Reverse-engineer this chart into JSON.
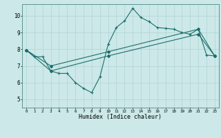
{
  "xlabel": "Humidex (Indice chaleur)",
  "xlim": [
    -0.5,
    23.5
  ],
  "ylim": [
    4.5,
    10.7
  ],
  "yticks": [
    5,
    6,
    7,
    8,
    9,
    10
  ],
  "xticks": [
    0,
    1,
    2,
    3,
    4,
    5,
    6,
    7,
    8,
    9,
    10,
    11,
    12,
    13,
    14,
    15,
    16,
    17,
    18,
    19,
    20,
    21,
    22,
    23
  ],
  "bg_color": "#cce8e8",
  "line_color": "#1a6e6a",
  "grid_color": "#b0d4d4",
  "line1_x": [
    0,
    1,
    2,
    3,
    4,
    5,
    6,
    7,
    8,
    9,
    10,
    11,
    12,
    13,
    14,
    15,
    16,
    17,
    18,
    19,
    20,
    21,
    22,
    23
  ],
  "line1_y": [
    7.95,
    7.55,
    7.55,
    6.7,
    6.55,
    6.55,
    6.0,
    5.65,
    5.4,
    6.35,
    8.3,
    9.3,
    9.7,
    10.45,
    9.9,
    9.65,
    9.3,
    9.25,
    9.2,
    9.0,
    8.9,
    9.2,
    7.65,
    7.6
  ],
  "line2_x": [
    0,
    3,
    10,
    21,
    23
  ],
  "line2_y": [
    7.95,
    6.7,
    7.6,
    8.9,
    7.6
  ],
  "line3_x": [
    0,
    3,
    10,
    21,
    23
  ],
  "line3_y": [
    7.95,
    7.0,
    7.85,
    9.2,
    7.6
  ]
}
